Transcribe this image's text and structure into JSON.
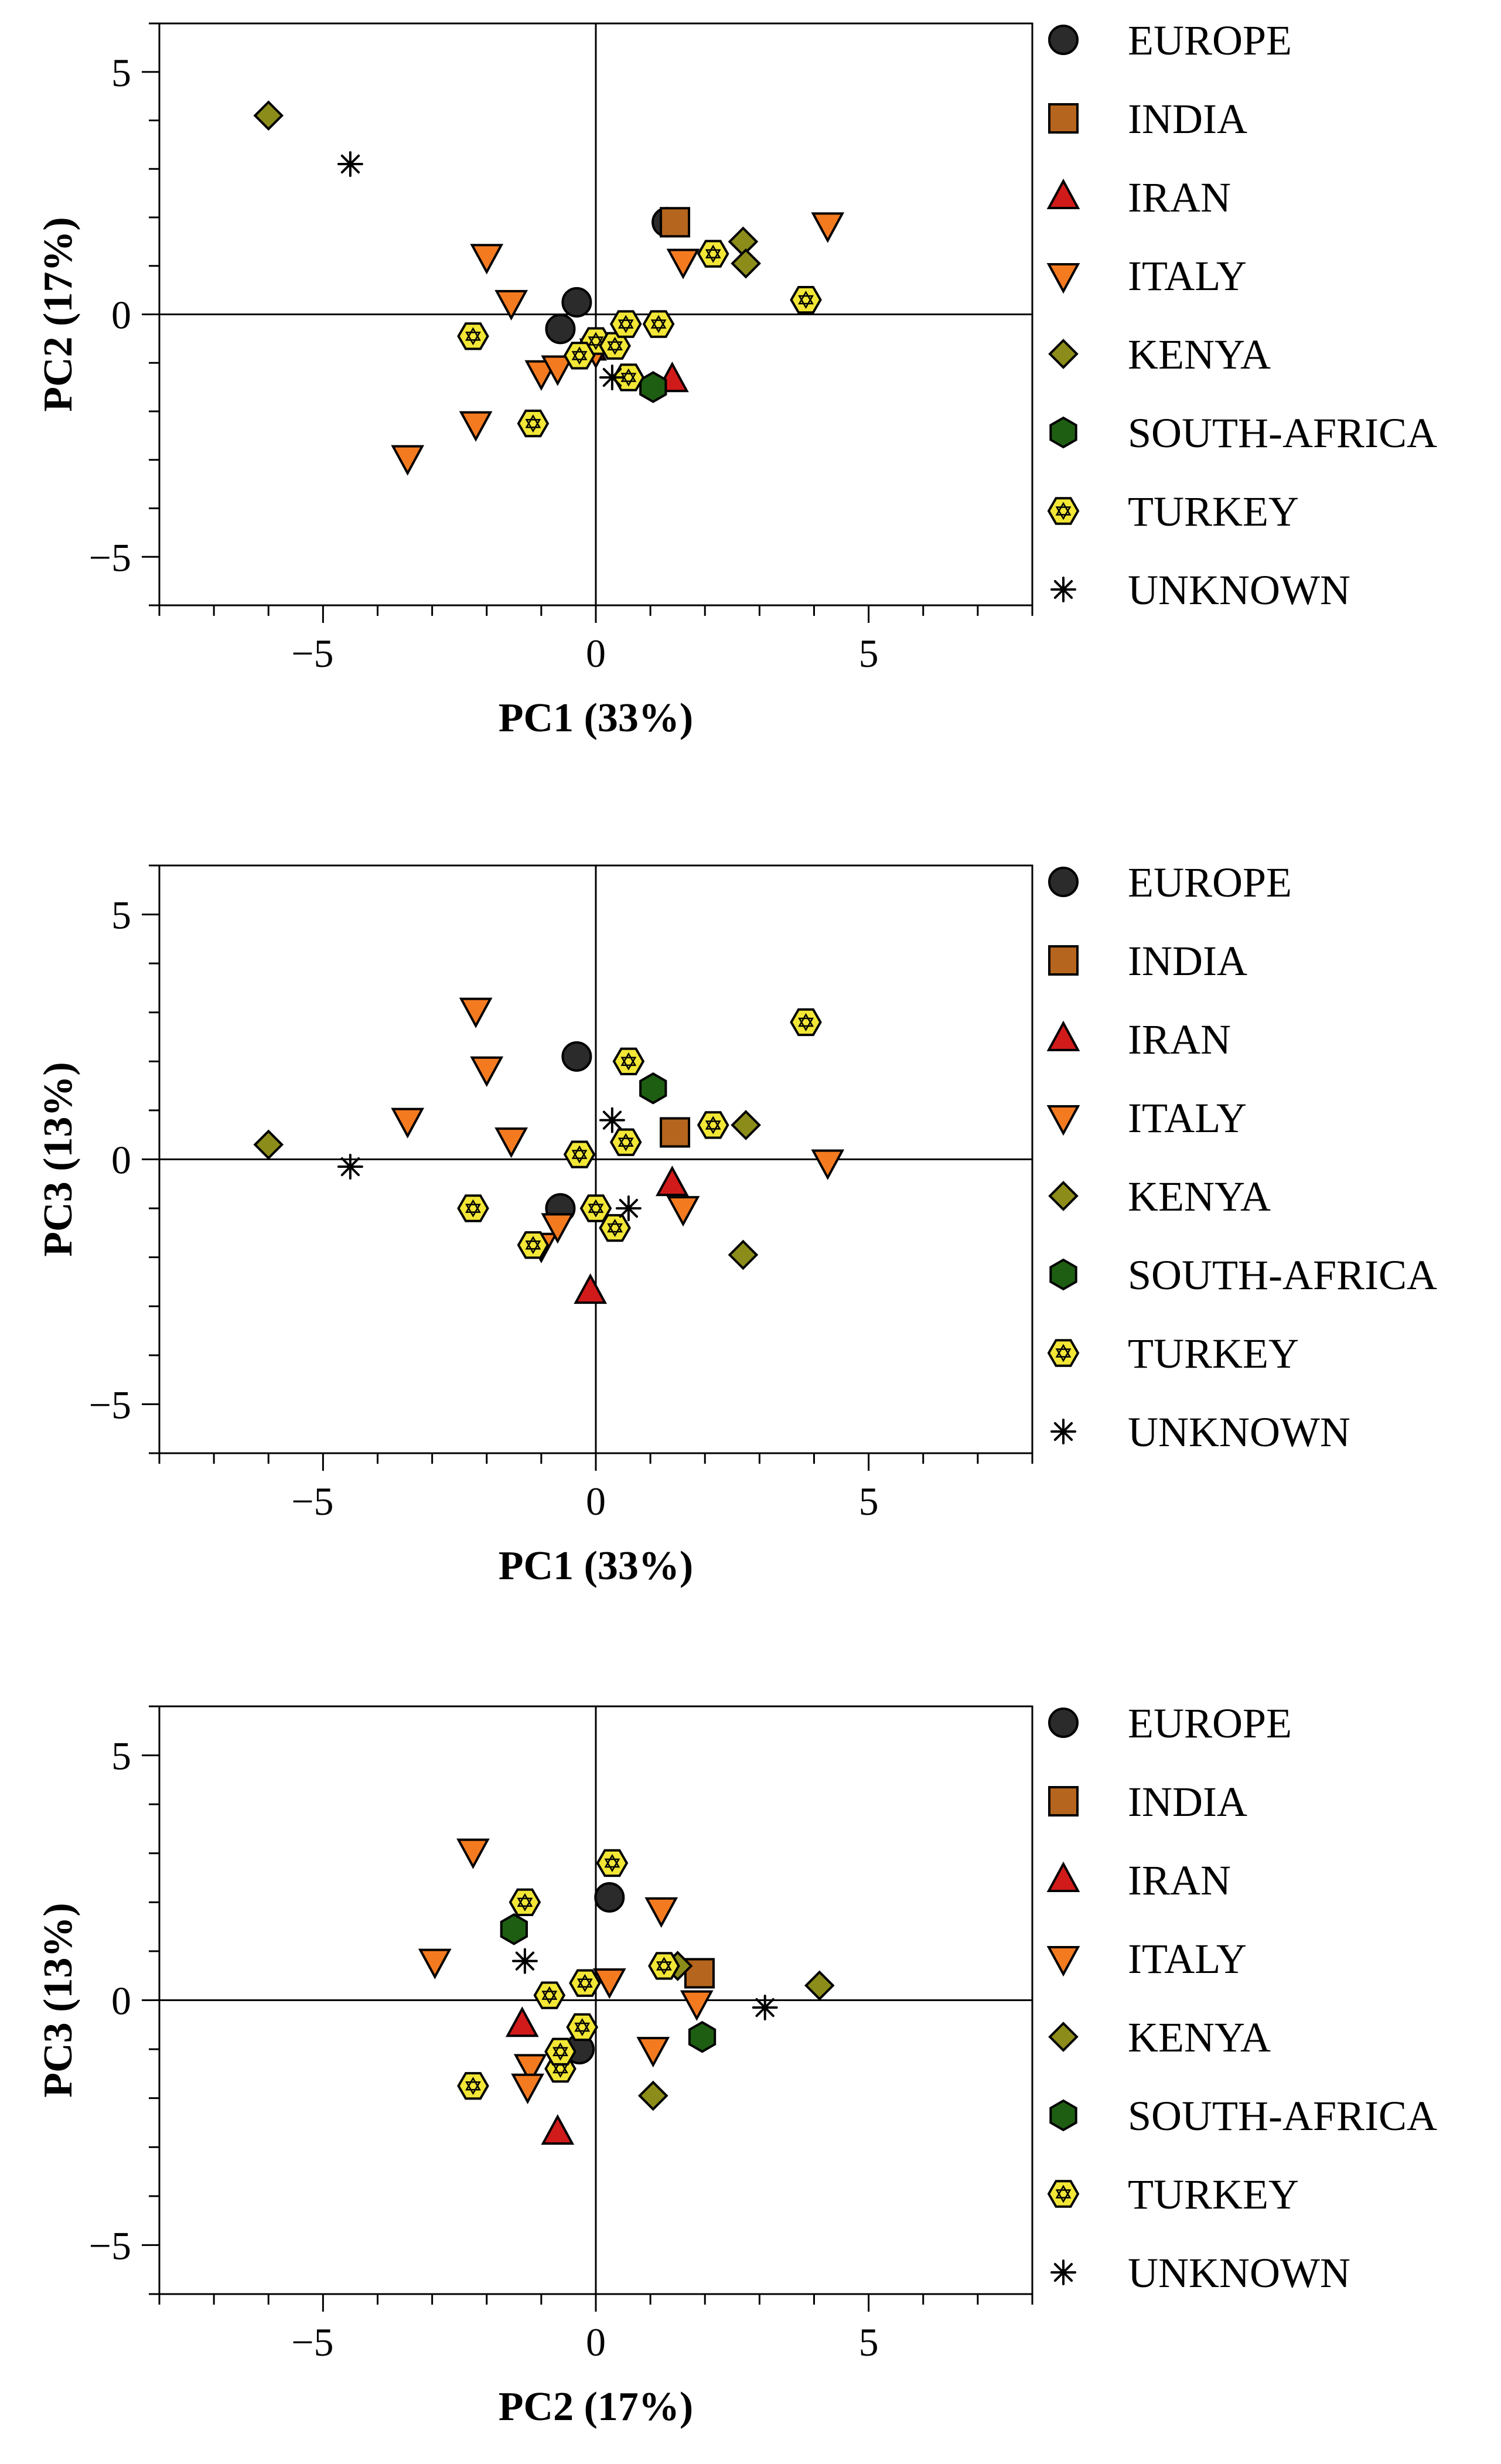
{
  "chart_data": [
    {
      "type": "scatter",
      "id": "pc1-pc2",
      "xlabel": "PC1 (33%)",
      "ylabel": "PC2 (17%)",
      "xlim": [
        -8,
        8
      ],
      "ylim": [
        -6,
        6
      ],
      "xticks": [
        -5,
        0,
        5
      ],
      "yticks": [
        -5,
        0,
        5
      ],
      "legend_position": "right",
      "series": [
        {
          "name": "EUROPE",
          "marker": "circle",
          "color": "#2b2b2b",
          "points": [
            [
              -0.35,
              0.25
            ],
            [
              -0.65,
              -0.3
            ],
            [
              1.3,
              1.9
            ]
          ]
        },
        {
          "name": "INDIA",
          "marker": "square",
          "color": "#b5651d",
          "points": [
            [
              1.45,
              1.9
            ]
          ]
        },
        {
          "name": "IRAN",
          "marker": "triangle-up",
          "color": "#d11a1a",
          "points": [
            [
              -0.1,
              -0.7
            ],
            [
              1.4,
              -1.35
            ]
          ]
        },
        {
          "name": "ITALY",
          "marker": "triangle-down",
          "color": "#f47a20",
          "points": [
            [
              -2.0,
              1.2
            ],
            [
              -1.55,
              0.25
            ],
            [
              -2.2,
              -2.25
            ],
            [
              -3.45,
              -2.95
            ],
            [
              -1.0,
              -1.2
            ],
            [
              -0.7,
              -1.1
            ],
            [
              1.6,
              1.1
            ],
            [
              4.25,
              1.85
            ],
            [
              0.0,
              -0.75
            ]
          ]
        },
        {
          "name": "KENYA",
          "marker": "diamond",
          "color": "#8c8c1a",
          "points": [
            [
              -6.0,
              4.1
            ],
            [
              2.7,
              1.5
            ],
            [
              2.75,
              1.05
            ]
          ]
        },
        {
          "name": "SOUTH-AFRICA",
          "marker": "hexagon",
          "color": "#1e5e12",
          "points": [
            [
              1.05,
              -1.5
            ]
          ]
        },
        {
          "name": "TURKEY",
          "marker": "hex-star",
          "color": "#f2e636",
          "points": [
            [
              -2.25,
              -0.45
            ],
            [
              -1.15,
              -2.25
            ],
            [
              0.0,
              -0.55
            ],
            [
              0.35,
              -0.65
            ],
            [
              0.55,
              -0.2
            ],
            [
              1.15,
              -0.2
            ],
            [
              0.6,
              -1.3
            ],
            [
              2.15,
              1.25
            ],
            [
              3.85,
              0.3
            ],
            [
              -0.3,
              -0.85
            ]
          ]
        },
        {
          "name": "UNKNOWN",
          "marker": "asterisk",
          "color": "#000000",
          "points": [
            [
              -4.5,
              3.1
            ],
            [
              0.3,
              -1.3
            ]
          ]
        }
      ]
    },
    {
      "type": "scatter",
      "id": "pc1-pc3",
      "xlabel": "PC1 (33%)",
      "ylabel": "PC3 (13%)",
      "xlim": [
        -8,
        8
      ],
      "ylim": [
        -6,
        6
      ],
      "xticks": [
        -5,
        0,
        5
      ],
      "yticks": [
        -5,
        0,
        5
      ],
      "legend_position": "right",
      "series": [
        {
          "name": "EUROPE",
          "marker": "circle",
          "color": "#2b2b2b",
          "points": [
            [
              -0.35,
              2.1
            ],
            [
              -0.65,
              -1.0
            ]
          ]
        },
        {
          "name": "INDIA",
          "marker": "square",
          "color": "#b5651d",
          "points": [
            [
              1.45,
              0.55
            ]
          ]
        },
        {
          "name": "IRAN",
          "marker": "triangle-up",
          "color": "#d11a1a",
          "points": [
            [
              -0.1,
              -2.7
            ],
            [
              1.4,
              -0.5
            ]
          ]
        },
        {
          "name": "ITALY",
          "marker": "triangle-down",
          "color": "#f47a20",
          "points": [
            [
              -2.2,
              3.05
            ],
            [
              -2.0,
              1.85
            ],
            [
              -3.45,
              0.8
            ],
            [
              -1.55,
              0.4
            ],
            [
              -1.0,
              -1.75
            ],
            [
              -0.7,
              -1.35
            ],
            [
              1.6,
              -1.0
            ],
            [
              4.25,
              -0.05
            ]
          ]
        },
        {
          "name": "KENYA",
          "marker": "diamond",
          "color": "#8c8c1a",
          "points": [
            [
              -6.0,
              0.3
            ],
            [
              2.75,
              0.7
            ],
            [
              2.7,
              -1.95
            ]
          ]
        },
        {
          "name": "SOUTH-AFRICA",
          "marker": "hexagon",
          "color": "#1e5e12",
          "points": [
            [
              1.05,
              1.45
            ]
          ]
        },
        {
          "name": "TURKEY",
          "marker": "hex-star",
          "color": "#f2e636",
          "points": [
            [
              0.6,
              2.0
            ],
            [
              3.85,
              2.8
            ],
            [
              0.55,
              0.35
            ],
            [
              -0.3,
              0.1
            ],
            [
              2.15,
              0.7
            ],
            [
              -2.25,
              -1.0
            ],
            [
              0.0,
              -1.0
            ],
            [
              0.35,
              -1.4
            ],
            [
              -1.15,
              -1.75
            ]
          ]
        },
        {
          "name": "UNKNOWN",
          "marker": "asterisk",
          "color": "#000000",
          "points": [
            [
              -4.5,
              -0.15
            ],
            [
              0.3,
              0.8
            ],
            [
              0.6,
              -1.0
            ]
          ]
        }
      ]
    },
    {
      "type": "scatter",
      "id": "pc2-pc3",
      "xlabel": "PC2 (17%)",
      "ylabel": "PC3 (13%)",
      "xlim": [
        -8,
        8
      ],
      "ylim": [
        -6,
        6
      ],
      "xticks": [
        -5,
        0,
        5
      ],
      "yticks": [
        -5,
        0,
        5
      ],
      "legend_position": "right",
      "series": [
        {
          "name": "EUROPE",
          "marker": "circle",
          "color": "#2b2b2b",
          "points": [
            [
              0.25,
              2.1
            ],
            [
              -0.3,
              -1.0
            ]
          ]
        },
        {
          "name": "INDIA",
          "marker": "square",
          "color": "#b5651d",
          "points": [
            [
              1.9,
              0.55
            ]
          ]
        },
        {
          "name": "IRAN",
          "marker": "triangle-up",
          "color": "#d11a1a",
          "points": [
            [
              -1.35,
              -0.5
            ],
            [
              -0.7,
              -2.7
            ]
          ]
        },
        {
          "name": "ITALY",
          "marker": "triangle-down",
          "color": "#f47a20",
          "points": [
            [
              -2.25,
              3.05
            ],
            [
              1.2,
              1.85
            ],
            [
              -2.95,
              0.8
            ],
            [
              0.25,
              0.4
            ],
            [
              1.85,
              -0.05
            ],
            [
              1.05,
              -1.0
            ],
            [
              -1.2,
              -1.35
            ],
            [
              -1.25,
              -1.75
            ]
          ]
        },
        {
          "name": "KENYA",
          "marker": "diamond",
          "color": "#8c8c1a",
          "points": [
            [
              4.1,
              0.3
            ],
            [
              1.5,
              0.7
            ],
            [
              1.05,
              -1.95
            ]
          ]
        },
        {
          "name": "SOUTH-AFRICA",
          "marker": "hexagon",
          "color": "#1e5e12",
          "points": [
            [
              -1.5,
              1.45
            ],
            [
              1.95,
              -0.75
            ]
          ]
        },
        {
          "name": "TURKEY",
          "marker": "hex-star",
          "color": "#f2e636",
          "points": [
            [
              -1.3,
              2.0
            ],
            [
              0.3,
              2.8
            ],
            [
              -0.85,
              0.1
            ],
            [
              -0.2,
              0.35
            ],
            [
              1.25,
              0.7
            ],
            [
              -0.25,
              -0.55
            ],
            [
              -0.65,
              -1.4
            ],
            [
              -2.25,
              -1.75
            ],
            [
              -0.65,
              -1.05
            ]
          ]
        },
        {
          "name": "UNKNOWN",
          "marker": "asterisk",
          "color": "#000000",
          "points": [
            [
              -1.3,
              0.8
            ],
            [
              3.1,
              -0.15
            ]
          ]
        }
      ]
    }
  ]
}
